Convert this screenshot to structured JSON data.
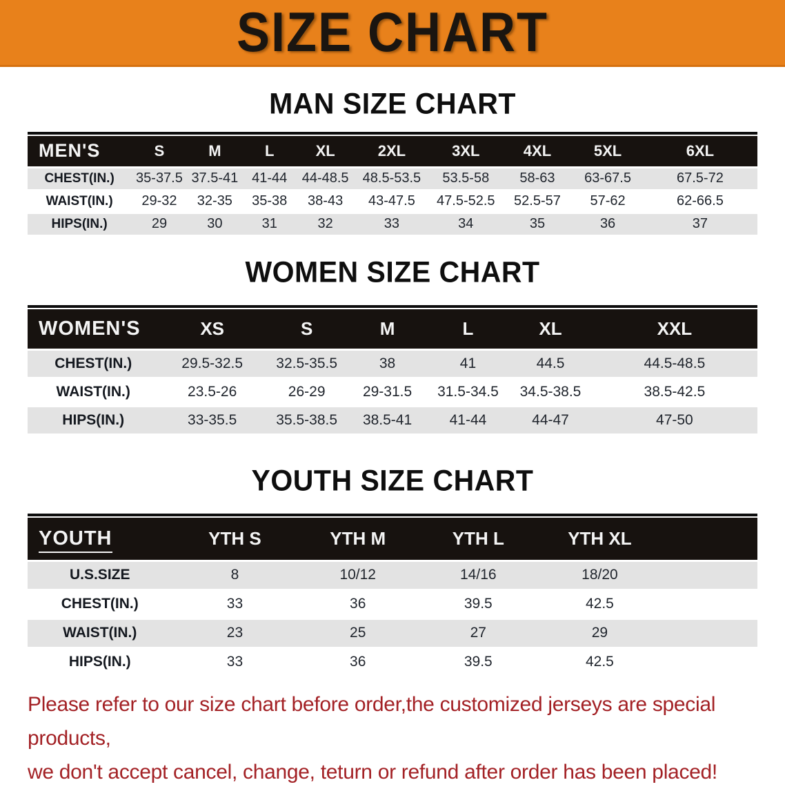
{
  "banner": {
    "title": "SIZE CHART"
  },
  "colors": {
    "banner_bg": "#e8811b",
    "table_header_bg": "#17120f",
    "row_stripe_gray": "#e3e3e3",
    "disclaimer_red": "#a32125"
  },
  "sections": {
    "men": {
      "title": "MAN SIZE CHART",
      "table": {
        "header_label": "MEN'S",
        "columns": [
          "S",
          "M",
          "L",
          "XL",
          "2XL",
          "3XL",
          "4XL",
          "5XL",
          "6XL"
        ],
        "rows": [
          {
            "label": "CHEST(IN.)",
            "values": [
              "35-37.5",
              "37.5-41",
              "41-44",
              "44-48.5",
              "48.5-53.5",
              "53.5-58",
              "58-63",
              "63-67.5",
              "67.5-72"
            ]
          },
          {
            "label": "WAIST(IN.)",
            "values": [
              "29-32",
              "32-35",
              "35-38",
              "38-43",
              "43-47.5",
              "47.5-52.5",
              "52.5-57",
              "57-62",
              "62-66.5"
            ]
          },
          {
            "label": "HIPS(IN.)",
            "values": [
              "29",
              "30",
              "31",
              "32",
              "33",
              "34",
              "35",
              "36",
              "37"
            ]
          }
        ]
      }
    },
    "women": {
      "title": "WOMEN SIZE CHART",
      "table": {
        "header_label": "WOMEN'S",
        "columns": [
          "XS",
          "S",
          "M",
          "L",
          "XL",
          "XXL"
        ],
        "rows": [
          {
            "label": "CHEST(IN.)",
            "values": [
              "29.5-32.5",
              "32.5-35.5",
              "38",
              "41",
              "44.5",
              "44.5-48.5"
            ]
          },
          {
            "label": "WAIST(IN.)",
            "values": [
              "23.5-26",
              "26-29",
              "29-31.5",
              "31.5-34.5",
              "34.5-38.5",
              "38.5-42.5"
            ]
          },
          {
            "label": "HIPS(IN.)",
            "values": [
              "33-35.5",
              "35.5-38.5",
              "38.5-41",
              "41-44",
              "44-47",
              "47-50"
            ]
          }
        ]
      }
    },
    "youth": {
      "title": "YOUTH SIZE CHART",
      "table": {
        "header_label": "YOUTH",
        "columns": [
          "YTH S",
          "YTH M",
          "YTH L",
          "YTH XL"
        ],
        "rows": [
          {
            "label": "U.S.SIZE",
            "values": [
              "8",
              "10/12",
              "14/16",
              "18/20"
            ]
          },
          {
            "label": "CHEST(IN.)",
            "values": [
              "33",
              "36",
              "39.5",
              "42.5"
            ]
          },
          {
            "label": "WAIST(IN.)",
            "values": [
              "23",
              "25",
              "27",
              "29"
            ]
          },
          {
            "label": "HIPS(IN.)",
            "values": [
              "33",
              "36",
              "39.5",
              "42.5"
            ]
          }
        ]
      }
    }
  },
  "disclaimer": {
    "line1": "Please refer to our size chart before order,the customized jerseys are special products,",
    "line2": "we don't accept cancel, change, teturn or refund after order has been placed!"
  }
}
